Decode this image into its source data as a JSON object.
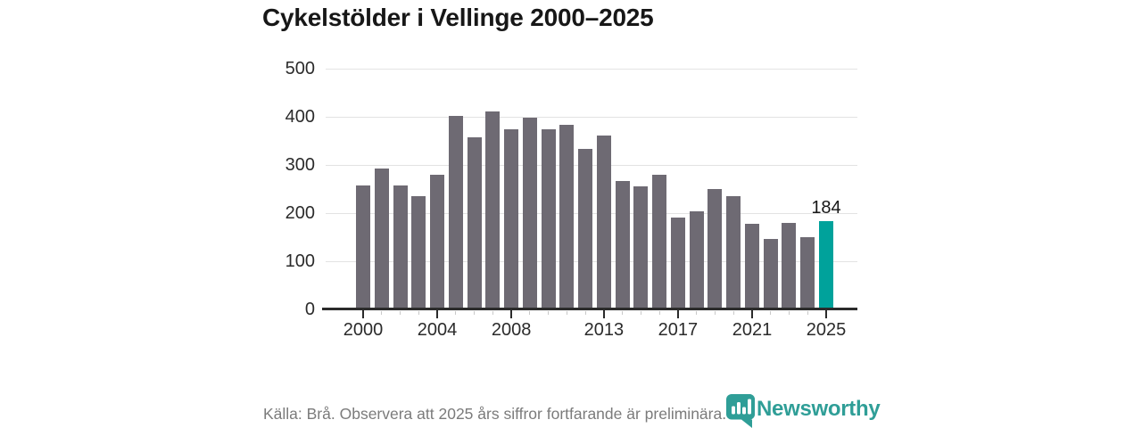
{
  "title": "Cykelstölder i Vellinge 2000–2025",
  "chart_data": {
    "type": "bar",
    "title": "Cykelstölder i Vellinge 2000–2025",
    "x": [
      2000,
      2001,
      2002,
      2003,
      2004,
      2005,
      2006,
      2007,
      2008,
      2009,
      2010,
      2011,
      2012,
      2013,
      2014,
      2015,
      2016,
      2017,
      2018,
      2019,
      2020,
      2021,
      2022,
      2023,
      2024,
      2025
    ],
    "values": [
      257,
      292,
      257,
      236,
      280,
      402,
      358,
      412,
      374,
      399,
      375,
      383,
      334,
      362,
      267,
      256,
      280,
      190,
      203,
      250,
      235,
      178,
      147,
      180,
      150,
      184
    ],
    "highlight": {
      "year": 2025,
      "value": 184,
      "label": "184"
    },
    "ylim": [
      0,
      500
    ],
    "yticks": [
      0,
      100,
      200,
      300,
      400,
      500
    ],
    "xtick_labeled_years": [
      2000,
      2004,
      2008,
      2013,
      2017,
      2021,
      2025
    ],
    "grid": true,
    "xlabel": "",
    "ylabel": "",
    "colors": {
      "bar": "#6e6a73",
      "highlight": "#00a29b",
      "axis": "#2b2b2b",
      "gridline": "#e3e3e3",
      "minor_tick": "#c9c9c9",
      "tick_label": "#2b2b2b"
    }
  },
  "footer": {
    "source": "Källa: Brå. Observera att 2025 års siffror fortfarande är preliminära.",
    "brand": {
      "name": "Newsworthy",
      "color": "#2f9e97"
    }
  }
}
